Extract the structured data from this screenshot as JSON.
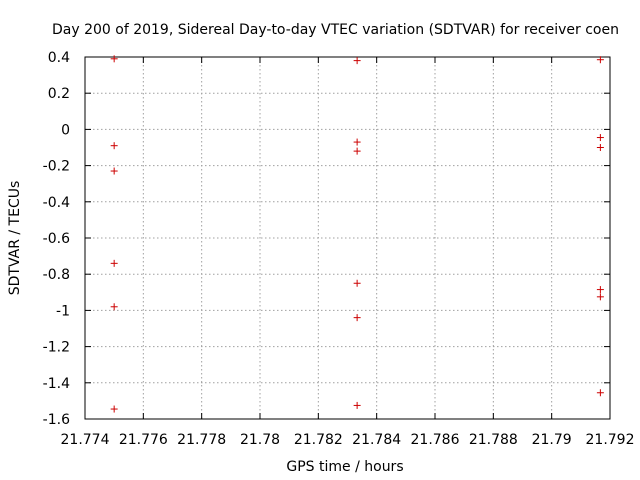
{
  "chart_data": {
    "type": "scatter",
    "title": "Day 200 of 2019, Sidereal Day-to-day VTEC variation (SDTVAR) for receiver coen",
    "xlabel": "GPS time / hours",
    "ylabel": "SDTVAR / TECUs",
    "xlim": [
      21.774,
      21.792
    ],
    "ylim": [
      -1.6,
      0.4
    ],
    "xticks": [
      21.774,
      21.776,
      21.778,
      21.78,
      21.782,
      21.784,
      21.786,
      21.788,
      21.79,
      21.792
    ],
    "xtick_labels": [
      "21.774",
      "21.776",
      "21.778",
      "21.78",
      "21.782",
      "21.784",
      "21.786",
      "21.788",
      "21.79",
      "21.792"
    ],
    "yticks": [
      0.4,
      0.2,
      0,
      -0.2,
      -0.4,
      -0.6,
      -0.8,
      -1,
      -1.2,
      -1.4,
      -1.6
    ],
    "ytick_labels": [
      "0.4",
      "0.2",
      "0",
      "-0.2",
      "-0.4",
      "-0.6",
      "-0.8",
      "-1",
      "-1.2",
      "-1.4",
      "-1.6"
    ],
    "grid": true,
    "marker": "plus",
    "color": "#cc0000",
    "series": [
      {
        "name": "SDTVAR",
        "points": [
          {
            "x": 21.775,
            "y": 0.39
          },
          {
            "x": 21.775,
            "y": -0.09
          },
          {
            "x": 21.775,
            "y": -0.23
          },
          {
            "x": 21.775,
            "y": -0.74
          },
          {
            "x": 21.775,
            "y": -0.98
          },
          {
            "x": 21.775,
            "y": -1.545
          },
          {
            "x": 21.78333,
            "y": 0.38
          },
          {
            "x": 21.78333,
            "y": -0.07
          },
          {
            "x": 21.78333,
            "y": -0.12
          },
          {
            "x": 21.78333,
            "y": -0.85
          },
          {
            "x": 21.78333,
            "y": -1.04
          },
          {
            "x": 21.78333,
            "y": -1.525
          },
          {
            "x": 21.79167,
            "y": 0.385
          },
          {
            "x": 21.79167,
            "y": -0.045
          },
          {
            "x": 21.79167,
            "y": -0.1
          },
          {
            "x": 21.79167,
            "y": -0.885
          },
          {
            "x": 21.79167,
            "y": -0.925
          },
          {
            "x": 21.79167,
            "y": -1.455
          }
        ]
      }
    ]
  }
}
